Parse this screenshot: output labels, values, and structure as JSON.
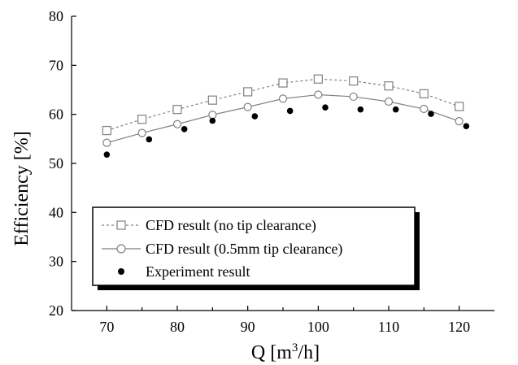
{
  "chart_data": {
    "type": "line",
    "title": "",
    "xlabel": "Q [m³/h]",
    "ylabel": "Efficiency [%]",
    "xlim": [
      65,
      125
    ],
    "ylim": [
      20,
      80
    ],
    "xticks": [
      70,
      80,
      90,
      100,
      110,
      120
    ],
    "yticks": [
      20,
      30,
      40,
      50,
      60,
      70,
      80
    ],
    "grid": false,
    "legend_position": "bottom-left",
    "series": [
      {
        "name": "CFD result (no tip clearance)",
        "marker": "open-square",
        "line": "dashed",
        "color": "#808080",
        "x": [
          70,
          75,
          80,
          85,
          90,
          95,
          100,
          105,
          110,
          115,
          120
        ],
        "y": [
          56.7,
          59.0,
          61.0,
          62.9,
          64.6,
          66.4,
          67.2,
          66.8,
          65.8,
          64.2,
          61.6
        ]
      },
      {
        "name": "CFD result (0.5mm tip clearance)",
        "marker": "open-circle",
        "line": "solid",
        "color": "#808080",
        "x": [
          70,
          75,
          80,
          85,
          90,
          95,
          100,
          105,
          110,
          115,
          120
        ],
        "y": [
          54.2,
          56.2,
          58.0,
          59.9,
          61.5,
          63.2,
          64.0,
          63.6,
          62.6,
          61.1,
          58.6
        ]
      },
      {
        "name": "Experiment result",
        "marker": "filled-circle",
        "line": "none",
        "color": "#000000",
        "x": [
          70,
          76,
          81,
          85,
          91,
          96,
          101,
          106,
          111,
          116,
          121
        ],
        "y": [
          51.8,
          54.9,
          57.0,
          58.7,
          59.6,
          60.7,
          61.4,
          61.0,
          61.0,
          60.1,
          57.6
        ]
      }
    ]
  }
}
